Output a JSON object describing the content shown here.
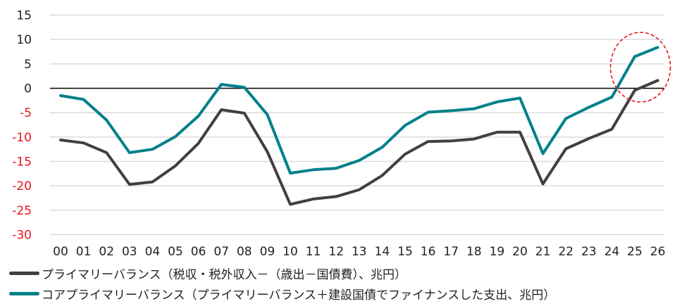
{
  "chart_data": {
    "type": "line",
    "title": "",
    "xlabel": "",
    "ylabel": "",
    "ylim": [
      -30,
      15
    ],
    "yticks": [
      15,
      10,
      5,
      0,
      -5,
      -10,
      -15,
      -20,
      -25,
      -30
    ],
    "negative_tick_color": "#e8141c",
    "grid": true,
    "legend_position": "bottom",
    "categories": [
      "00",
      "01",
      "02",
      "03",
      "04",
      "05",
      "06",
      "07",
      "08",
      "09",
      "10",
      "11",
      "12",
      "13",
      "14",
      "15",
      "16",
      "17",
      "18",
      "19",
      "20",
      "21",
      "22",
      "23",
      "24",
      "25",
      "26"
    ],
    "series": [
      {
        "name": "プライマリーバランス（税収・税外収入－（歳出－国債費）、兆円）",
        "color": "#404040",
        "values": [
          -10.6,
          -11.2,
          -13.2,
          -19.7,
          -19.2,
          -15.9,
          -11.3,
          -4.4,
          -5.1,
          -13.0,
          -23.8,
          -22.7,
          -22.2,
          -20.8,
          -17.9,
          -13.5,
          -10.9,
          -10.8,
          -10.4,
          -9.0,
          -9.0,
          -19.6,
          -12.4,
          -10.3,
          -8.4,
          -0.4,
          1.6
        ]
      },
      {
        "name": "コアプライマリーバランス（プライマリーバランス＋建設国債でファイナンスした支出、兆円）",
        "color": "#00808a",
        "values": [
          -1.5,
          -2.3,
          -6.5,
          -13.2,
          -12.5,
          -9.9,
          -5.7,
          0.8,
          0.2,
          -5.4,
          -17.4,
          -16.7,
          -16.4,
          -14.8,
          -12.1,
          -7.6,
          -4.9,
          -4.6,
          -4.2,
          -2.8,
          -2.0,
          -13.4,
          -6.2,
          -3.9,
          -1.8,
          6.5,
          8.4
        ]
      }
    ],
    "annotations": [
      {
        "type": "dashed-ellipse",
        "color": "#e8141c",
        "around_categories": [
          "25",
          "26"
        ]
      }
    ]
  }
}
